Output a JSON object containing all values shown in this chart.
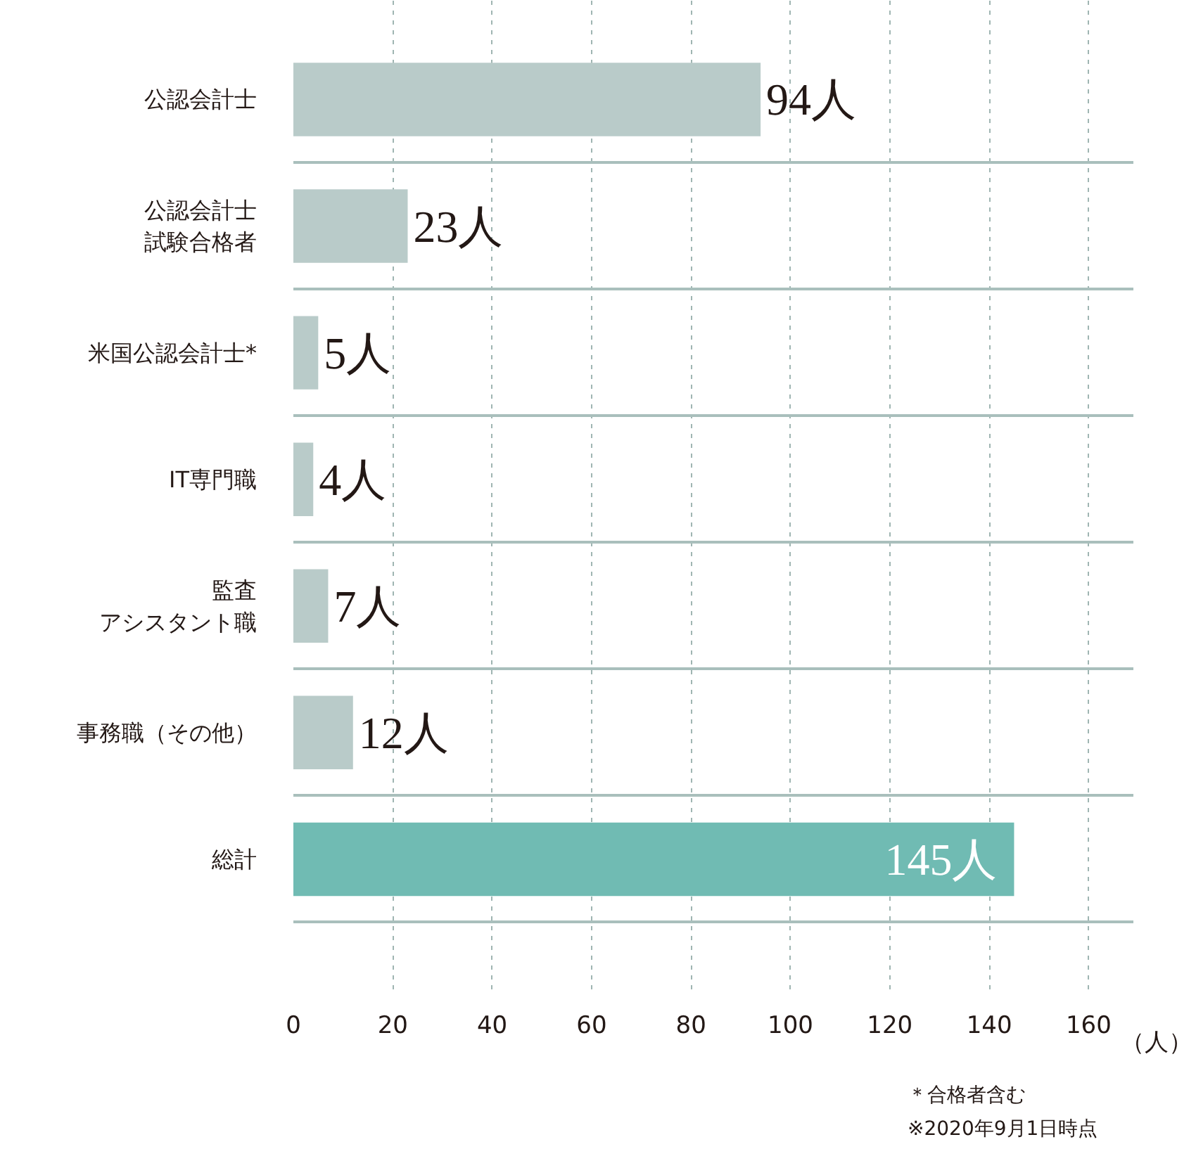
{
  "chart_data": {
    "type": "bar",
    "orientation": "horizontal",
    "xlabel": "（人）",
    "categories": [
      "公認会計士",
      "公認会計士試験合格者",
      "米国公認会計士*",
      "IT専門職",
      "監査アシスタント職",
      "事務職（その他）",
      "総計"
    ],
    "values": [
      94,
      23,
      5,
      4,
      7,
      12,
      145
    ],
    "value_labels": [
      "94人",
      "23人",
      "5人",
      "4人",
      "7人",
      "12人",
      "145人"
    ],
    "colors": [
      "#b9cbc9",
      "#b9cbc9",
      "#b9cbc9",
      "#b9cbc9",
      "#b9cbc9",
      "#b9cbc9",
      "#70bbb3"
    ],
    "xlim": [
      0,
      169
    ],
    "xticks": [
      0,
      20,
      40,
      60,
      80,
      100,
      120,
      140,
      160
    ],
    "grid": true,
    "annotations": [
      "＊合格者含む",
      "※2020年9月1日時点"
    ]
  }
}
